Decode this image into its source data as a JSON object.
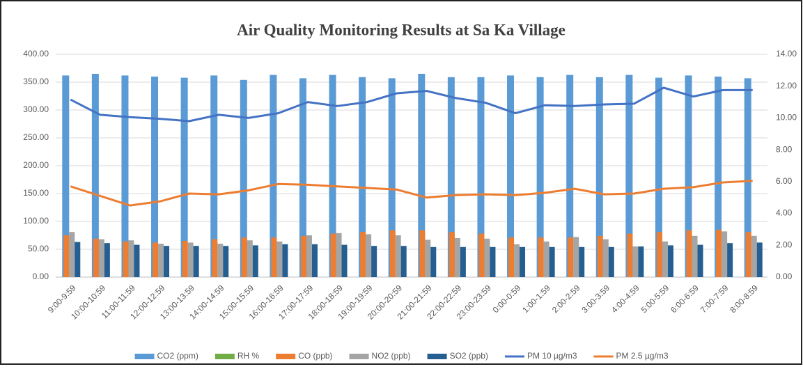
{
  "chart_data": {
    "type": "bar",
    "title": "Air Quality Monitoring Results at Sa Ka Village",
    "categories": [
      "9:00-9:59",
      "10:00-10:59",
      "11:00-11:59",
      "12:00-12:59",
      "13:00-13:59",
      "14:00-14:59",
      "15:00-15:59",
      "16:00-16:59",
      "17:00-17:59",
      "18:00-18:59",
      "19:00-19:59",
      "20:00-20:59",
      "21:00-21:59",
      "22:00-22:59",
      "23:00-23:59",
      "0:00-0:59",
      "1:00-1:59",
      "2:00-2:59",
      "3:00-3:59",
      "4:00-4:59",
      "5:00-5:59",
      "6:00-6:59",
      "7:00-7:59",
      "8:00-8:59"
    ],
    "ylim": [
      0,
      400
    ],
    "yticks": [
      {
        "value": 0,
        "label": "0.00"
      },
      {
        "value": 50,
        "label": "50.00"
      },
      {
        "value": 100,
        "label": "100.00"
      },
      {
        "value": 150,
        "label": "150.00"
      },
      {
        "value": 200,
        "label": "200.00"
      },
      {
        "value": 250,
        "label": "250.00"
      },
      {
        "value": 300,
        "label": "300.00"
      },
      {
        "value": 350,
        "label": "350.00"
      },
      {
        "value": 400,
        "label": "400.00"
      }
    ],
    "y2lim": [
      0,
      14
    ],
    "y2ticks": [
      {
        "value": 0,
        "label": "0.00"
      },
      {
        "value": 2,
        "label": "2.00"
      },
      {
        "value": 4,
        "label": "4.00"
      },
      {
        "value": 6,
        "label": "6.00"
      },
      {
        "value": 8,
        "label": "8.00"
      },
      {
        "value": 10,
        "label": "10.00"
      },
      {
        "value": 12,
        "label": "12.00"
      },
      {
        "value": 14,
        "label": "14.00"
      }
    ],
    "legend": "bottom",
    "series": [
      {
        "name": "CO2 (ppm)",
        "color": "#5b9bd5",
        "type": "bar",
        "values": [
          362,
          365,
          362,
          360,
          358,
          362,
          354,
          363,
          357,
          363,
          359,
          357,
          365,
          359,
          359,
          362,
          359,
          363,
          359,
          363,
          358,
          362,
          360,
          357
        ]
      },
      {
        "name": "RH %",
        "color": "#70ad47",
        "type": "bar",
        "values": [
          null,
          null,
          null,
          null,
          null,
          null,
          null,
          null,
          null,
          null,
          null,
          null,
          null,
          null,
          null,
          null,
          null,
          null,
          null,
          null,
          null,
          null,
          null,
          null
        ]
      },
      {
        "name": "CO (ppb)",
        "color": "#ed7d31",
        "type": "bar",
        "values": [
          75,
          69,
          64,
          62,
          65,
          68,
          71,
          71,
          74,
          78,
          81,
          84,
          84,
          81,
          78,
          71,
          71,
          71,
          74,
          78,
          81,
          84,
          85,
          81
        ]
      },
      {
        "name": "NO2 (ppb)",
        "color": "#a5a5a5",
        "type": "bar",
        "values": [
          81,
          68,
          66,
          60,
          62,
          60,
          66,
          64,
          75,
          79,
          77,
          75,
          67,
          70,
          69,
          59,
          64,
          72,
          68,
          55,
          64,
          74,
          82,
          74
        ]
      },
      {
        "name": "SO2 (ppb)",
        "color": "#255e91",
        "type": "bar",
        "values": [
          63,
          61,
          58,
          56,
          56,
          56,
          57,
          59,
          59,
          58,
          56,
          56,
          54,
          54,
          54,
          54,
          54,
          54,
          54,
          55,
          57,
          58,
          61,
          62
        ]
      },
      {
        "name": "PM 10 µg/m3",
        "color": "#4472c4",
        "type": "line",
        "axis": "y2",
        "values": [
          11.15,
          10.2,
          10.05,
          9.95,
          9.8,
          10.2,
          10.0,
          10.3,
          11.0,
          10.75,
          11.0,
          11.55,
          11.7,
          11.25,
          10.95,
          10.3,
          10.8,
          10.75,
          10.85,
          10.9,
          11.9,
          11.35,
          11.75,
          11.75
        ]
      },
      {
        "name": "PM 2.5  µg/m3",
        "color": "#ed7d31",
        "type": "line",
        "axis": "y2",
        "values": [
          5.7,
          5.1,
          4.5,
          4.75,
          5.25,
          5.2,
          5.45,
          5.85,
          5.8,
          5.7,
          5.6,
          5.5,
          5.0,
          5.15,
          5.2,
          5.15,
          5.3,
          5.55,
          5.2,
          5.25,
          5.55,
          5.65,
          5.95,
          6.05
        ]
      }
    ]
  }
}
